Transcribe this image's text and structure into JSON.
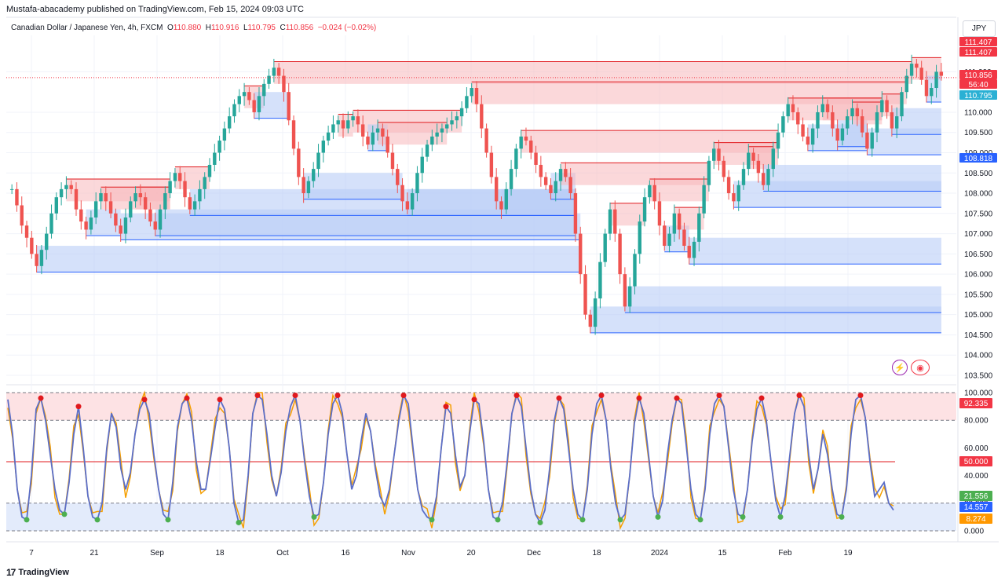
{
  "header": {
    "published": "Mustafa-abacademy published on TradingView.com, Feb 15, 2024 09:03 UTC"
  },
  "symbol": {
    "name": "Canadian Dollar / Japanese Yen, 4h, FXCM",
    "o_label": "O",
    "o": "110.880",
    "h_label": "H",
    "h": "110.916",
    "l_label": "L",
    "l": "110.795",
    "c_label": "C",
    "c": "110.856",
    "change": "−0.024 (−0.02%)"
  },
  "unit": "JPY",
  "footer": {
    "brand": "TradingView",
    "logo": "17"
  },
  "colors": {
    "up": "#26a69a",
    "down": "#ef5350",
    "supply_fill": "#f7b8bb",
    "demand_fill": "#b9cdf6",
    "stoch_line": "#5b6ec7",
    "stoch_signal": "#f59f00",
    "overbought": "#e0191d",
    "oversold": "#4caf50"
  },
  "chart_data": [
    {
      "type": "candlestick",
      "title": "",
      "xlabel": "",
      "ylabel": "",
      "ylim": [
        103.5,
        111.9
      ],
      "y_ticks": [
        "111.000",
        "110.000",
        "109.500",
        "109.000",
        "108.500",
        "108.000",
        "107.500",
        "107.000",
        "106.500",
        "106.000",
        "105.500",
        "105.000",
        "104.500",
        "104.000",
        "103.500"
      ],
      "x_ticks": [
        "7",
        "21",
        "Sep",
        "18",
        "Oct",
        "16",
        "Nov",
        "20",
        "Dec",
        "18",
        "2024",
        "15",
        "Feb",
        "19"
      ],
      "grid": true,
      "price_labels": [
        {
          "text": "111.407",
          "color": "#f23645"
        },
        {
          "text": "111.407",
          "color": "#f23645"
        },
        {
          "text": "110.856",
          "color": "#f23645"
        },
        {
          "text": "56:40",
          "color": "#f23645"
        },
        {
          "text": "110.795",
          "color": "#2ab0d4"
        },
        {
          "text": "108.818",
          "color": "#2962ff"
        }
      ],
      "close_path": [
        108.1,
        107.7,
        107.2,
        106.9,
        106.5,
        106.2,
        106.6,
        107.0,
        107.5,
        107.9,
        108.1,
        108.2,
        108.1,
        107.6,
        107.3,
        107.1,
        107.4,
        107.8,
        108.0,
        107.8,
        107.5,
        107.2,
        107.0,
        107.4,
        107.8,
        108.0,
        107.9,
        107.6,
        107.3,
        107.1,
        107.6,
        108.0,
        108.3,
        108.5,
        108.3,
        107.9,
        107.6,
        107.8,
        108.1,
        108.4,
        108.7,
        109.0,
        109.3,
        109.6,
        109.9,
        110.2,
        110.4,
        110.5,
        110.3,
        110.0,
        110.4,
        110.7,
        110.9,
        111.1,
        110.9,
        110.5,
        109.8,
        109.1,
        108.4,
        108.0,
        108.3,
        108.6,
        109.0,
        109.3,
        109.5,
        109.7,
        109.8,
        109.6,
        109.8,
        109.9,
        109.7,
        109.4,
        109.2,
        109.5,
        109.6,
        109.4,
        109.0,
        108.6,
        108.2,
        107.8,
        107.6,
        108.0,
        108.5,
        108.9,
        109.2,
        109.4,
        109.5,
        109.6,
        109.7,
        109.8,
        109.9,
        110.1,
        110.4,
        110.6,
        110.2,
        109.6,
        109.0,
        108.4,
        107.8,
        107.6,
        108.1,
        108.6,
        109.1,
        109.4,
        109.3,
        109.0,
        108.7,
        108.4,
        108.2,
        108.0,
        108.3,
        108.6,
        108.4,
        108.0,
        107.0,
        106.0,
        105.0,
        104.7,
        105.4,
        106.3,
        107.0,
        107.6,
        107.0,
        106.0,
        105.2,
        105.7,
        106.5,
        107.3,
        107.9,
        108.2,
        107.8,
        107.2,
        106.7,
        107.0,
        107.5,
        107.1,
        106.7,
        106.4,
        106.8,
        107.5,
        108.2,
        108.8,
        109.1,
        108.8,
        108.4,
        108.0,
        107.8,
        108.2,
        108.6,
        109.0,
        108.8,
        108.5,
        108.2,
        108.6,
        109.1,
        109.5,
        109.9,
        110.2,
        110.0,
        109.7,
        109.4,
        109.2,
        109.6,
        110.0,
        110.2,
        110.0,
        109.6,
        109.3,
        109.6,
        109.9,
        110.1,
        109.9,
        109.5,
        109.1,
        109.5,
        110.0,
        110.3,
        110.0,
        109.6,
        109.9,
        110.5,
        110.9,
        111.2,
        111.1,
        110.8,
        110.4,
        110.6,
        111.0,
        110.9
      ]
    },
    {
      "type": "line",
      "title": "",
      "xlabel": "",
      "ylabel": "",
      "ylim": [
        0,
        100
      ],
      "y_ticks": [
        "100.000",
        "80.000",
        "60.000",
        "40.000",
        "20.000",
        "0.000"
      ],
      "levels": {
        "upper": 80,
        "middle": 50,
        "lower": 20
      },
      "value_labels": [
        {
          "text": "92.335",
          "color": "#f23645"
        },
        {
          "text": "50.000",
          "color": "#f23645"
        },
        {
          "text": "21.556",
          "color": "#4caf50"
        },
        {
          "text": "14.557",
          "color": "#2962ff"
        },
        {
          "text": "8.274",
          "color": "#ff9800"
        }
      ],
      "series": [
        {
          "values": [
            95,
            70,
            30,
            10,
            8,
            40,
            88,
            96,
            80,
            55,
            30,
            15,
            12,
            35,
            70,
            90,
            60,
            25,
            10,
            8,
            20,
            60,
            85,
            75,
            45,
            30,
            42,
            70,
            88,
            95,
            85,
            55,
            30,
            12,
            8,
            35,
            75,
            92,
            96,
            80,
            50,
            30,
            30,
            52,
            75,
            95,
            88,
            60,
            20,
            6,
            8,
            40,
            85,
            98,
            95,
            70,
            40,
            25,
            42,
            72,
            90,
            98,
            80,
            50,
            25,
            10,
            12,
            35,
            70,
            92,
            98,
            85,
            55,
            30,
            40,
            65,
            85,
            72,
            45,
            25,
            18,
            30,
            55,
            80,
            98,
            92,
            60,
            30,
            15,
            10,
            8,
            25,
            60,
            90,
            85,
            55,
            32,
            40,
            70,
            95,
            92,
            65,
            30,
            10,
            8,
            20,
            50,
            85,
            98,
            90,
            60,
            30,
            12,
            6,
            15,
            45,
            80,
            96,
            88,
            60,
            30,
            12,
            8,
            30,
            70,
            92,
            98,
            80,
            45,
            20,
            8,
            12,
            40,
            78,
            96,
            85,
            55,
            25,
            10,
            22,
            55,
            80,
            96,
            92,
            62,
            30,
            12,
            8,
            30,
            70,
            92,
            98,
            90,
            60,
            30,
            12,
            10,
            30,
            65,
            88,
            96,
            80,
            50,
            22,
            10,
            25,
            55,
            85,
            98,
            90,
            55,
            30,
            45,
            70,
            55,
            30,
            12,
            10,
            30,
            70,
            95,
            98,
            82,
            50,
            25,
            30,
            35,
            20,
            15
          ]
        }
      ]
    }
  ]
}
